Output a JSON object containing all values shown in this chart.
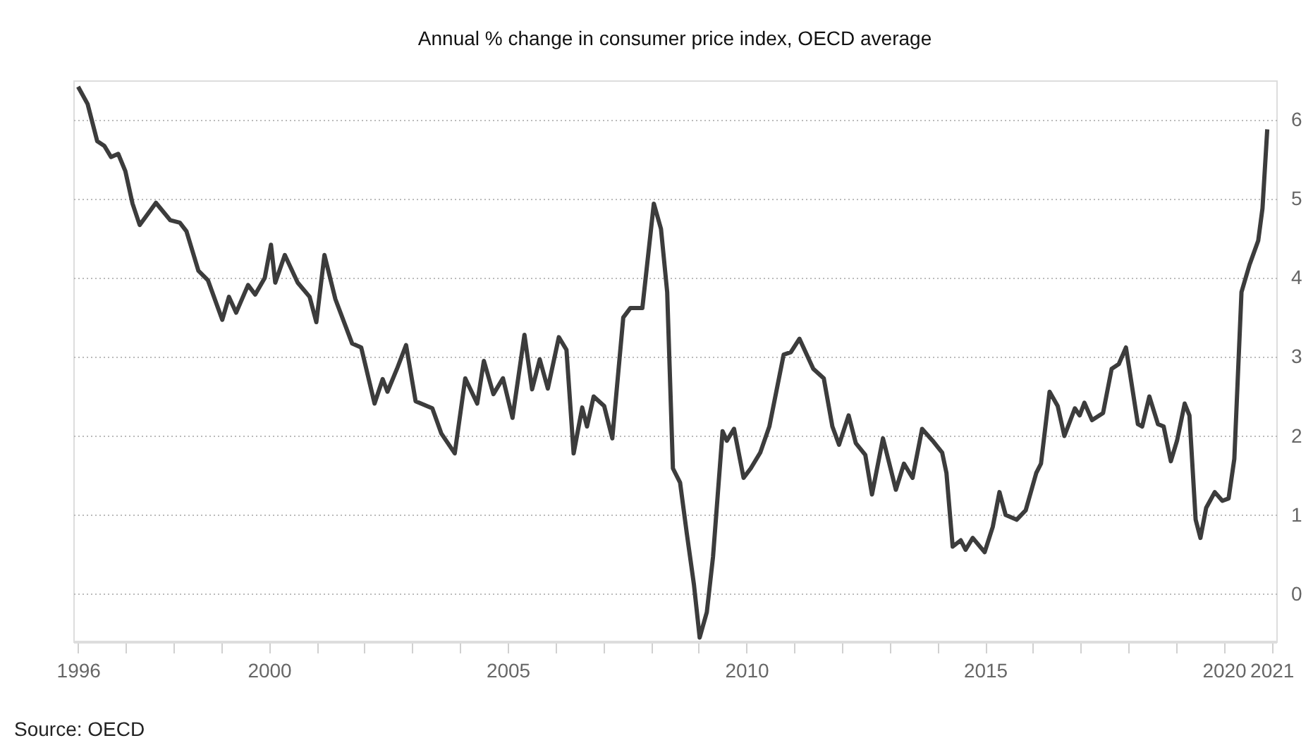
{
  "chart_data": {
    "type": "line",
    "title": "Annual % change in consumer price index, OECD average",
    "annotations": [
      "Source: OECD"
    ],
    "x": [
      1996.0,
      1996.2,
      1996.4,
      1996.55,
      1996.69,
      1996.84,
      1996.99,
      1997.14,
      1997.29,
      1997.63,
      1997.93,
      1998.13,
      1998.27,
      1998.52,
      1998.72,
      1999.02,
      1999.16,
      1999.31,
      1999.56,
      1999.71,
      1999.91,
      2000.04,
      2000.13,
      2000.33,
      2000.6,
      2000.85,
      2000.99,
      2001.16,
      2001.39,
      2001.74,
      2001.93,
      2002.21,
      2002.38,
      2002.48,
      2002.68,
      2002.87,
      2003.07,
      2003.42,
      2003.61,
      2003.89,
      2004.11,
      2004.36,
      2004.5,
      2004.7,
      2004.9,
      2005.1,
      2005.35,
      2005.51,
      2005.67,
      2005.84,
      2006.07,
      2006.23,
      2006.38,
      2006.56,
      2006.66,
      2006.8,
      2007.02,
      2007.19,
      2007.42,
      2007.57,
      2007.82,
      2008.06,
      2008.21,
      2008.34,
      2008.46,
      2008.61,
      2008.75,
      2008.9,
      2009.02,
      2009.17,
      2009.3,
      2009.5,
      2009.59,
      2009.74,
      2009.94,
      2010.09,
      2010.29,
      2010.48,
      2010.78,
      2010.93,
      2011.11,
      2011.4,
      2011.62,
      2011.8,
      2011.94,
      2012.14,
      2012.29,
      2012.49,
      2012.63,
      2012.86,
      2013.13,
      2013.3,
      2013.48,
      2013.68,
      2013.9,
      2014.1,
      2014.19,
      2014.32,
      2014.49,
      2014.59,
      2014.74,
      2014.99,
      2015.16,
      2015.3,
      2015.43,
      2015.66,
      2015.85,
      2016.07,
      2016.17,
      2016.35,
      2016.52,
      2016.66,
      2016.88,
      2016.98,
      2017.08,
      2017.24,
      2017.47,
      2017.65,
      2017.8,
      2017.95,
      2018.2,
      2018.29,
      2018.44,
      2018.62,
      2018.74,
      2018.89,
      2019.02,
      2019.18,
      2019.28,
      2019.41,
      2019.51,
      2019.63,
      2019.81,
      2019.97,
      2020.1,
      2020.22,
      2020.37,
      2020.54,
      2020.72,
      2020.81,
      2020.91
    ],
    "values": [
      6.42,
      6.2,
      5.73,
      5.67,
      5.53,
      5.57,
      5.35,
      4.94,
      4.67,
      4.95,
      4.73,
      4.7,
      4.59,
      4.09,
      3.97,
      3.47,
      3.76,
      3.56,
      3.91,
      3.79,
      4.0,
      4.42,
      3.94,
      4.29,
      3.94,
      3.76,
      3.44,
      4.29,
      3.73,
      3.17,
      3.12,
      2.41,
      2.72,
      2.56,
      2.85,
      3.15,
      2.44,
      2.35,
      2.03,
      1.78,
      2.73,
      2.41,
      2.95,
      2.53,
      2.73,
      2.23,
      3.28,
      2.59,
      2.97,
      2.6,
      3.25,
      3.09,
      1.78,
      2.36,
      2.12,
      2.5,
      2.38,
      1.97,
      3.5,
      3.62,
      3.62,
      4.94,
      4.62,
      3.82,
      1.59,
      1.41,
      0.77,
      0.12,
      -0.55,
      -0.23,
      0.47,
      2.06,
      1.94,
      2.09,
      1.47,
      1.59,
      1.79,
      2.12,
      3.03,
      3.06,
      3.23,
      2.85,
      2.73,
      2.12,
      1.89,
      2.26,
      1.91,
      1.76,
      1.26,
      1.97,
      1.32,
      1.65,
      1.47,
      2.09,
      1.94,
      1.79,
      1.53,
      0.6,
      0.68,
      0.56,
      0.71,
      0.53,
      0.85,
      1.29,
      1.0,
      0.94,
      1.06,
      1.53,
      1.65,
      2.56,
      2.38,
      2.0,
      2.35,
      2.26,
      2.42,
      2.2,
      2.29,
      2.85,
      2.91,
      3.12,
      2.15,
      2.12,
      2.5,
      2.15,
      2.12,
      1.68,
      1.94,
      2.41,
      2.26,
      0.94,
      0.71,
      1.09,
      1.29,
      1.18,
      1.21,
      1.71,
      3.82,
      4.17,
      4.47,
      4.88,
      5.88
    ],
    "color": "#3c3c3c",
    "line_style": "solid",
    "marker": "none",
    "xlim": [
      1995.9,
      2021.1
    ],
    "xticks": [
      1996,
      {
        "value": 1997,
        "label": null
      },
      {
        "value": 1998,
        "label": null
      },
      {
        "value": 1999,
        "label": null
      },
      2000,
      {
        "value": 2001,
        "label": null
      },
      {
        "value": 2002,
        "label": null
      },
      {
        "value": 2003,
        "label": null
      },
      {
        "value": 2004,
        "label": null
      },
      2005,
      {
        "value": 2006,
        "label": null
      },
      {
        "value": 2007,
        "label": null
      },
      {
        "value": 2008,
        "label": null
      },
      {
        "value": 2009,
        "label": null
      },
      2010,
      {
        "value": 2011,
        "label": null
      },
      {
        "value": 2012,
        "label": null
      },
      {
        "value": 2013,
        "label": null
      },
      {
        "value": 2014,
        "label": null
      },
      2015,
      {
        "value": 2016,
        "label": null
      },
      {
        "value": 2017,
        "label": null
      },
      {
        "value": 2018,
        "label": null
      },
      {
        "value": 2019,
        "label": null
      },
      2020,
      2021
    ],
    "ylim": [
      -0.6,
      6.5
    ],
    "yticks": [
      0,
      1,
      2,
      3,
      4,
      5,
      6
    ],
    "grid": "y"
  }
}
